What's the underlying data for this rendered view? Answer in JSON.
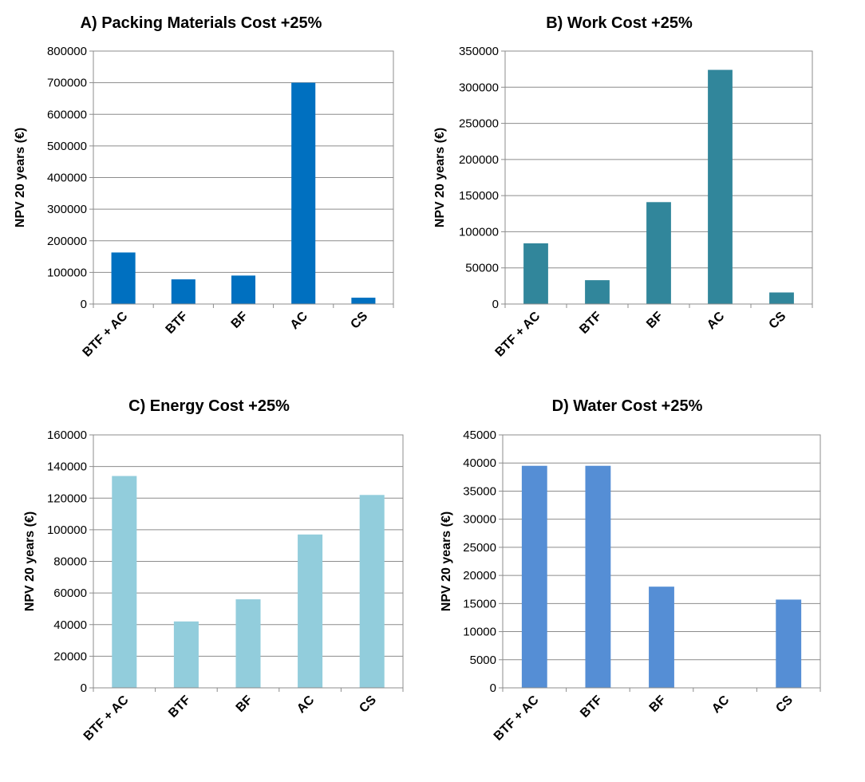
{
  "chart_data": [
    {
      "type": "bar",
      "title": "A) Packing Materials Cost +25%",
      "ylabel": "NPV 20 years (€)",
      "xlabel": "",
      "categories": [
        "BTF + AC",
        "BTF",
        "BF",
        "AC",
        "CS"
      ],
      "values": [
        163000,
        78000,
        90000,
        700000,
        20000
      ],
      "ylim": [
        0,
        800000
      ],
      "yticks": [
        "0",
        "100000",
        "200000",
        "300000",
        "400000",
        "500000",
        "600000",
        "700000",
        "800000"
      ],
      "color": "#0070c0",
      "grid": true,
      "legend": false
    },
    {
      "type": "bar",
      "title": "B) Work Cost +25%",
      "ylabel": "NPV 20 years (€)",
      "xlabel": "",
      "categories": [
        "BTF + AC",
        "BTF",
        "BF",
        "AC",
        "CS"
      ],
      "values": [
        84000,
        33000,
        141000,
        324000,
        16000
      ],
      "ylim": [
        0,
        350000
      ],
      "yticks": [
        "0",
        "50000",
        "100000",
        "150000",
        "200000",
        "250000",
        "300000",
        "350000"
      ],
      "color": "#31869b",
      "grid": true,
      "legend": false
    },
    {
      "type": "bar",
      "title": "C) Energy Cost +25%",
      "ylabel": "NPV 20 years (€)",
      "xlabel": "",
      "categories": [
        "BTF + AC",
        "BTF",
        "BF",
        "AC",
        "CS"
      ],
      "values": [
        134000,
        42000,
        56000,
        97000,
        122000
      ],
      "ylim": [
        0,
        160000
      ],
      "yticks": [
        "0",
        "20000",
        "40000",
        "60000",
        "80000",
        "100000",
        "120000",
        "140000",
        "160000"
      ],
      "color": "#92cddc",
      "grid": true,
      "legend": false
    },
    {
      "type": "bar",
      "title": "D) Water Cost +25%",
      "ylabel": "NPV 20 years (€)",
      "xlabel": "",
      "categories": [
        "BTF + AC",
        "BTF",
        "BF",
        "AC",
        "CS"
      ],
      "values": [
        39500,
        39500,
        18000,
        0,
        15700
      ],
      "ylim": [
        0,
        45000
      ],
      "yticks": [
        "0",
        "5000",
        "10000",
        "15000",
        "20000",
        "25000",
        "30000",
        "35000",
        "40000",
        "45000"
      ],
      "color": "#558ed5",
      "grid": true,
      "legend": false
    }
  ]
}
